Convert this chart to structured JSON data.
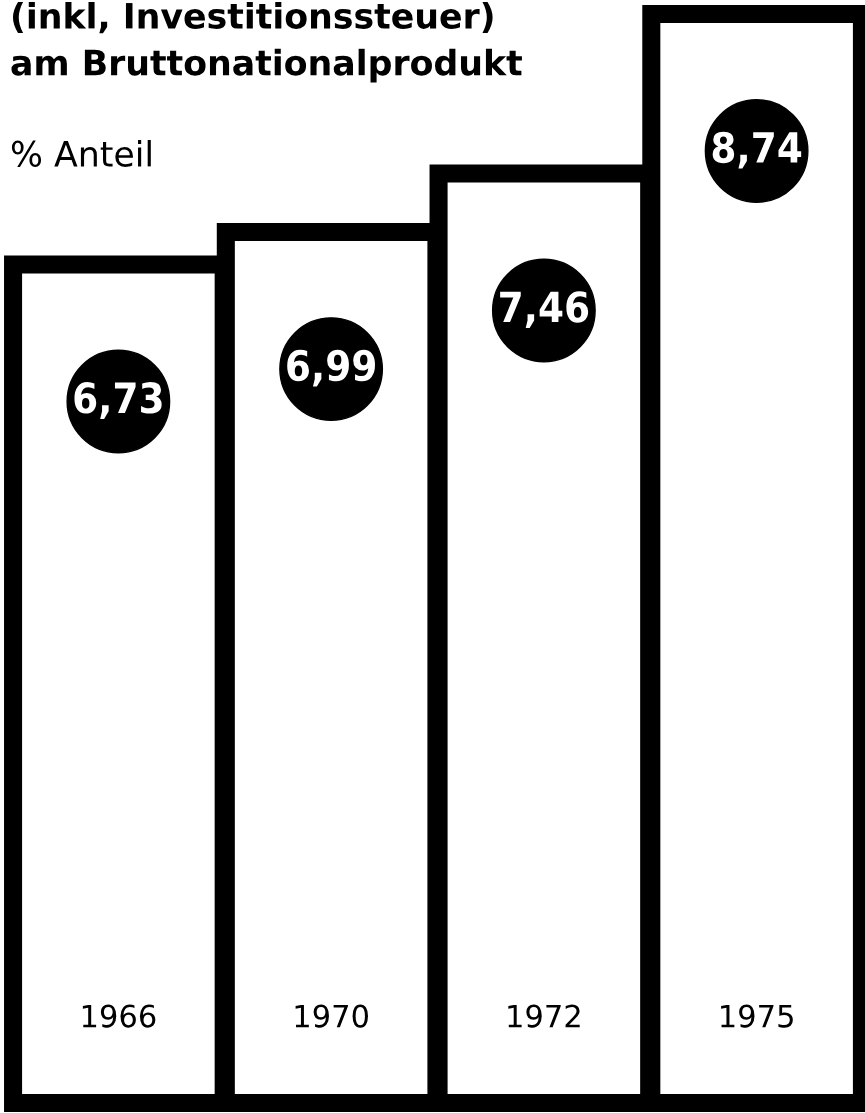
{
  "chart_data": {
    "type": "bar",
    "title": "(inkl, Investitionssteuer)\nam Bruttonationalprodukt",
    "ylabel": "% Anteil",
    "categories": [
      "1966",
      "1970",
      "1972",
      "1975"
    ],
    "values": [
      6.73,
      6.99,
      7.46,
      8.74
    ],
    "value_labels": [
      "6,73",
      "6,99",
      "7,46",
      "8,74"
    ],
    "color": "#ffffff",
    "grid": false
  }
}
